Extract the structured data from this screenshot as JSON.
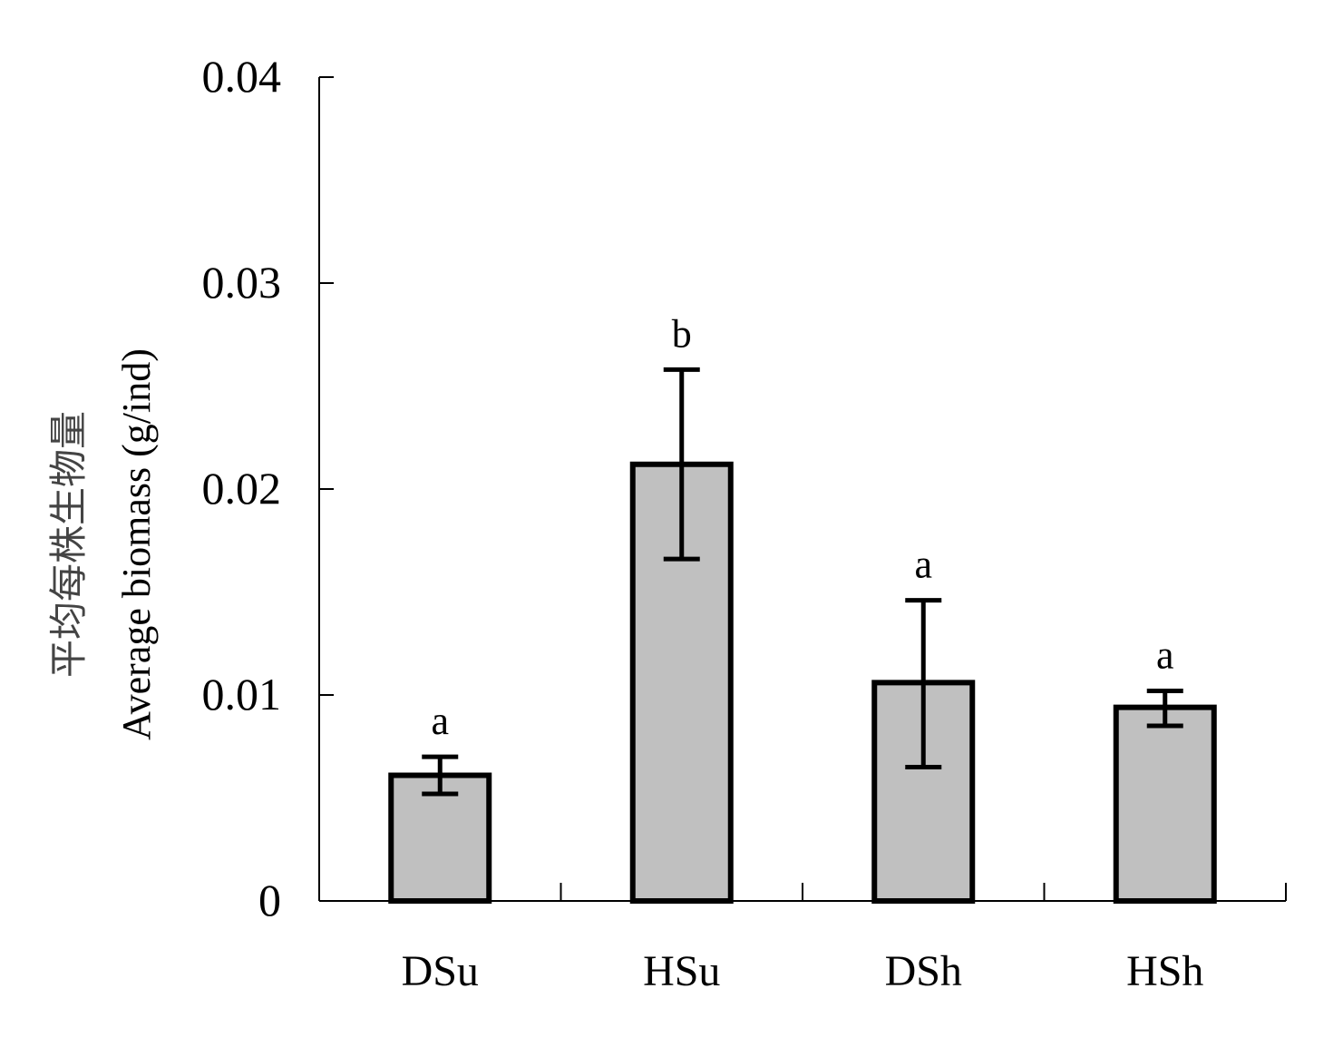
{
  "chart_data": {
    "type": "bar",
    "categories": [
      "DSu",
      "HSu",
      "DSh",
      "HSh"
    ],
    "values": [
      0.0061,
      0.0212,
      0.0106,
      0.0094
    ],
    "error_low": [
      0.0052,
      0.0166,
      0.0065,
      0.0085
    ],
    "error_high": [
      0.007,
      0.0258,
      0.0146,
      0.0102
    ],
    "significance": [
      "a",
      "b",
      "a",
      "a"
    ],
    "ylabel_cn": "平均每株生物量",
    "ylabel": "Average biomass (g/ind)",
    "xlabel": "",
    "ylim": [
      0,
      0.04
    ],
    "yticks": [
      0,
      0.01,
      0.02,
      0.03,
      0.04
    ],
    "ytick_labels": [
      "0",
      "0.01",
      "0.02",
      "0.03",
      "0.04"
    ],
    "grid": false,
    "colors": {
      "bar_fill": "#c0c0c0",
      "bar_stroke": "#000000",
      "axis": "#000000"
    }
  }
}
